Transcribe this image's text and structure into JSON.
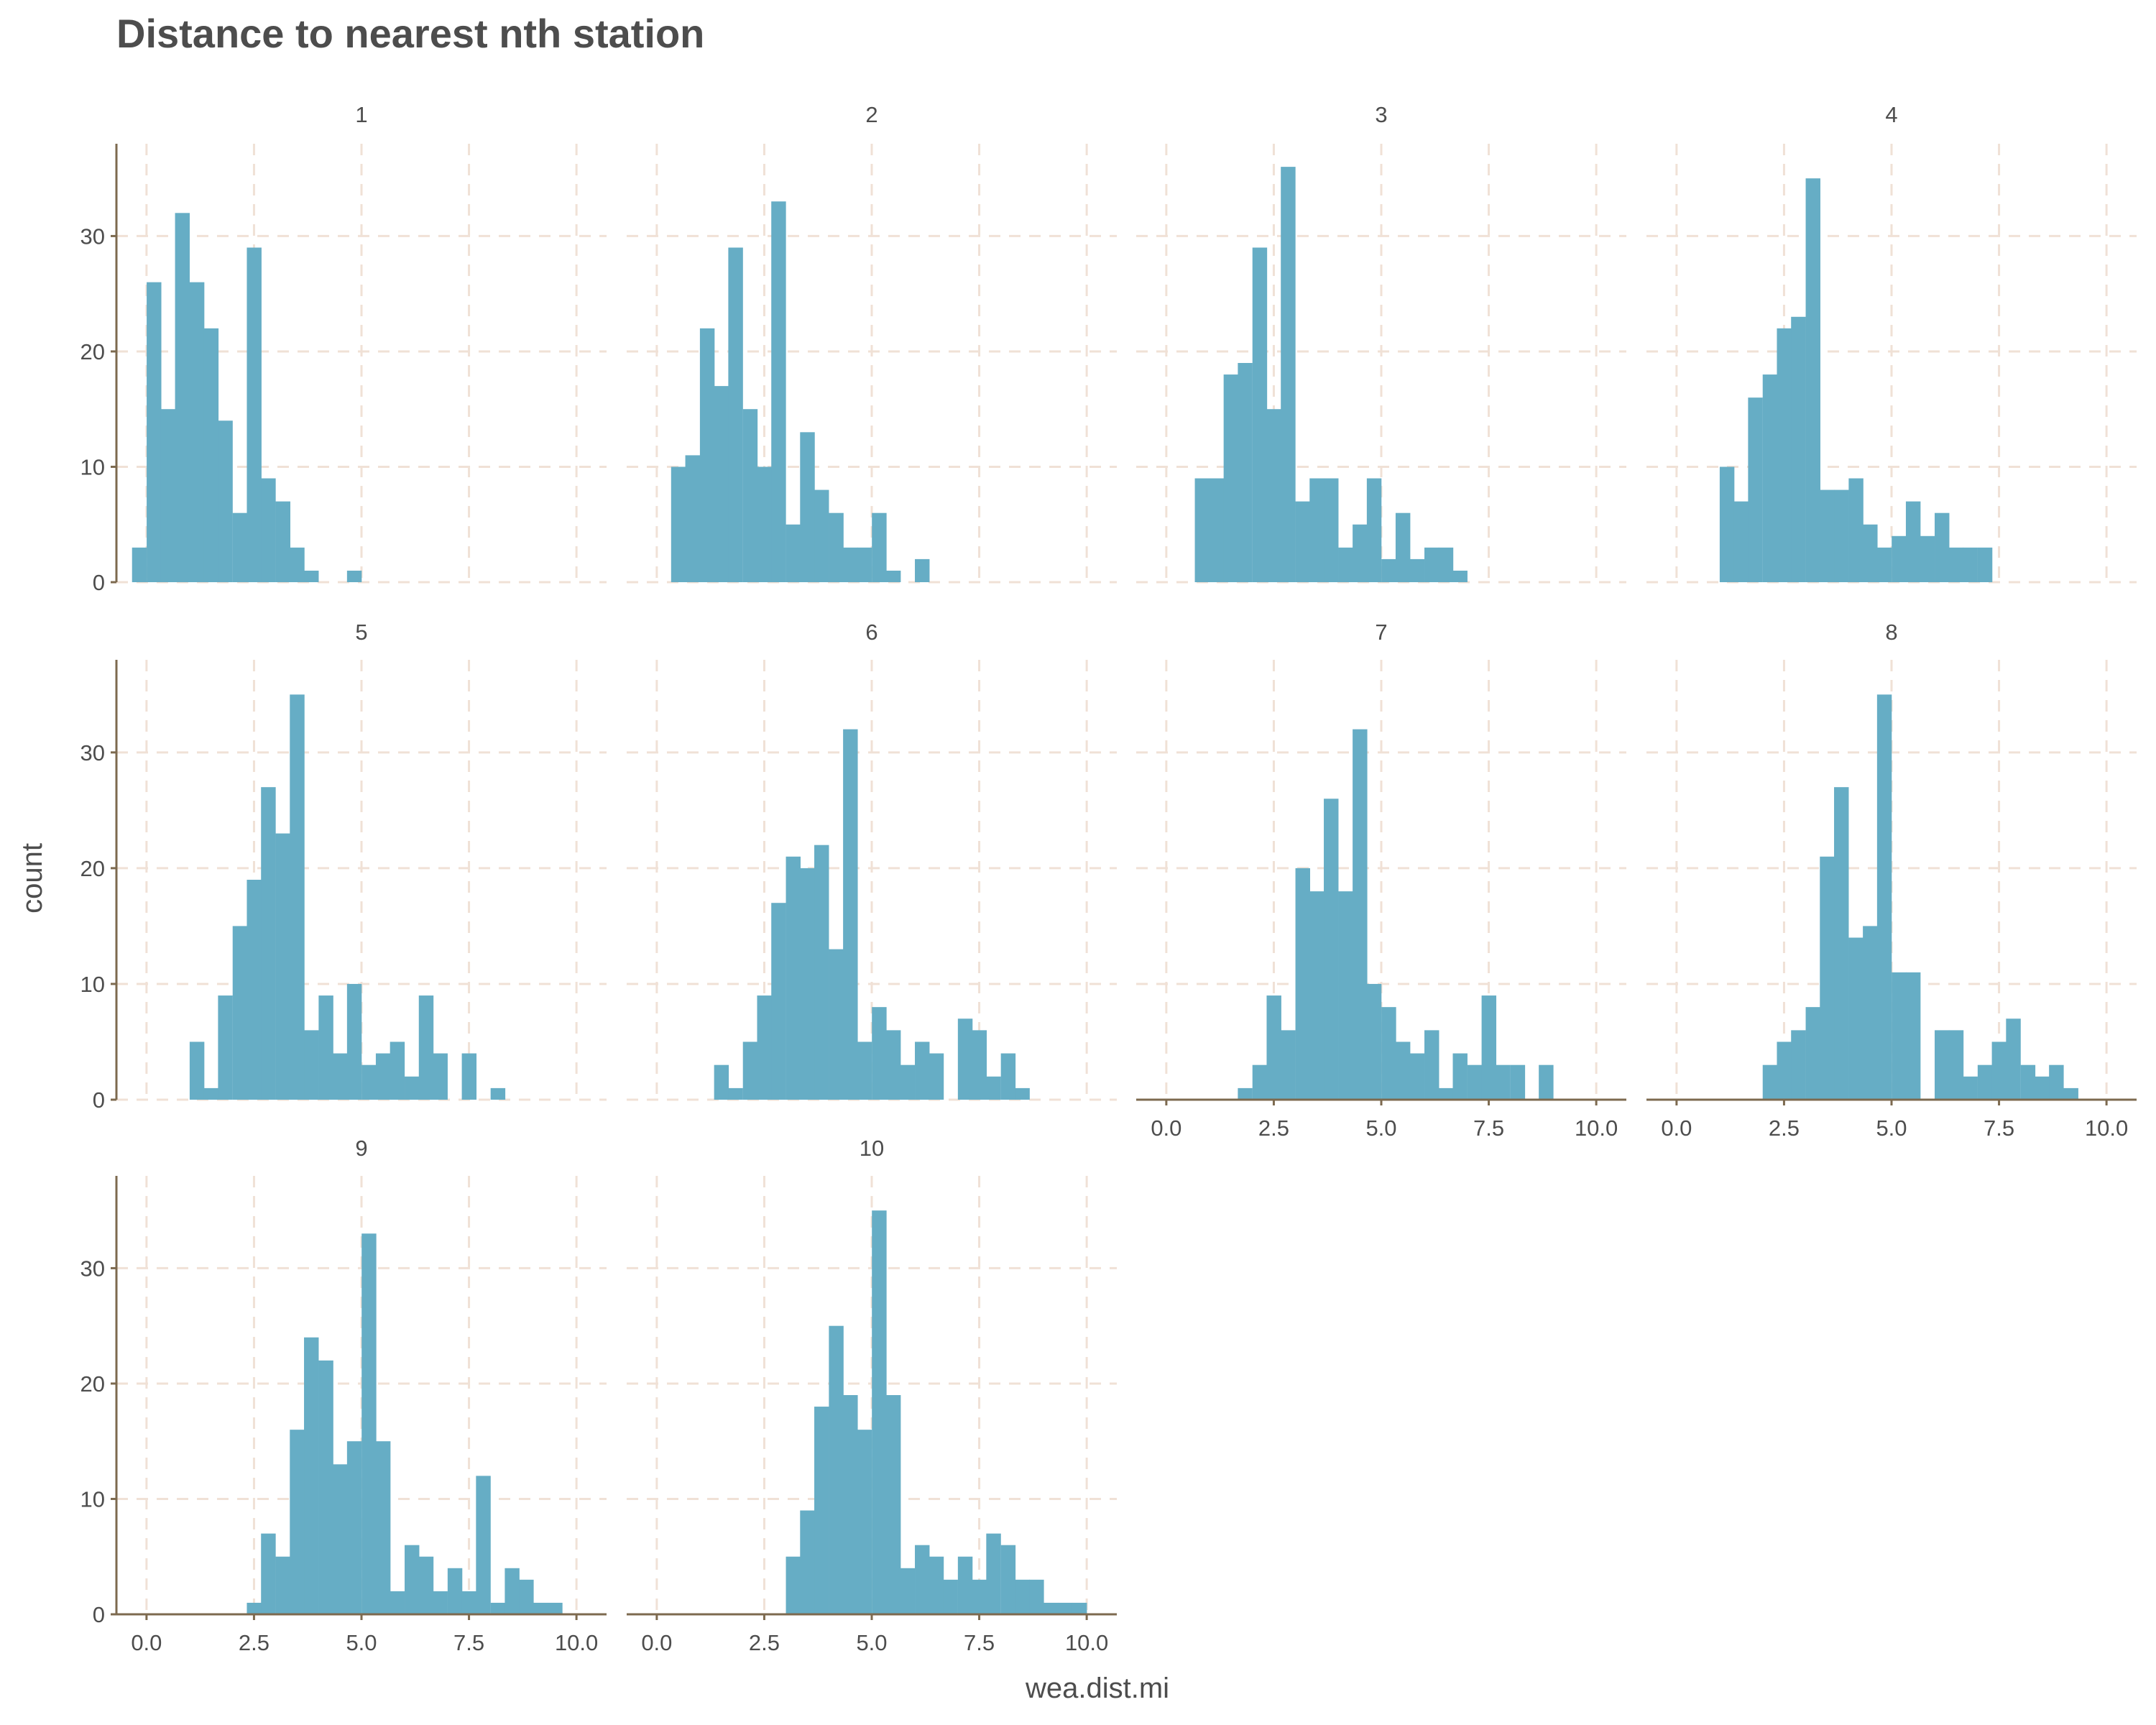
{
  "chart_data": {
    "type": "bar",
    "subtype": "faceted-histogram",
    "title": "Distance to nearest nth station",
    "xlabel": "wea.dist.mi",
    "ylabel": "count",
    "xlim": [
      -0.7,
      10.7
    ],
    "ylim": [
      0,
      38
    ],
    "x_ticks": [
      0.0,
      2.5,
      5.0,
      7.5,
      10.0
    ],
    "x_tick_labels": [
      "0.0",
      "2.5",
      "5.0",
      "7.5",
      "10.0"
    ],
    "y_ticks": [
      0,
      10,
      20,
      30
    ],
    "y_tick_labels": [
      "0",
      "10",
      "20",
      "30"
    ],
    "grid": true,
    "legend": "none",
    "colors": {
      "bar": "#66adc5",
      "grid": "#f0e1d6",
      "axis": "#7d6a4f",
      "text": "#4d4d4d"
    },
    "bin_width": 0.3333,
    "facets": [
      {
        "label": "1",
        "bins": [
          [
            -0.17,
            3
          ],
          [
            0.17,
            26
          ],
          [
            0.5,
            15
          ],
          [
            0.83,
            32
          ],
          [
            1.17,
            26
          ],
          [
            1.5,
            22
          ],
          [
            1.83,
            14
          ],
          [
            2.17,
            6
          ],
          [
            2.5,
            29
          ],
          [
            2.83,
            9
          ],
          [
            3.17,
            7
          ],
          [
            3.5,
            3
          ],
          [
            3.83,
            1
          ],
          [
            4.83,
            1
          ]
        ]
      },
      {
        "label": "2",
        "bins": [
          [
            0.5,
            10
          ],
          [
            0.83,
            11
          ],
          [
            1.17,
            22
          ],
          [
            1.5,
            17
          ],
          [
            1.83,
            29
          ],
          [
            2.17,
            15
          ],
          [
            2.5,
            10
          ],
          [
            2.83,
            33
          ],
          [
            3.17,
            5
          ],
          [
            3.5,
            13
          ],
          [
            3.83,
            8
          ],
          [
            4.17,
            6
          ],
          [
            4.5,
            3
          ],
          [
            4.83,
            3
          ],
          [
            5.17,
            6
          ],
          [
            5.5,
            1
          ],
          [
            6.17,
            2
          ]
        ]
      },
      {
        "label": "3",
        "bins": [
          [
            0.83,
            9
          ],
          [
            1.17,
            9
          ],
          [
            1.5,
            18
          ],
          [
            1.83,
            19
          ],
          [
            2.17,
            29
          ],
          [
            2.5,
            15
          ],
          [
            2.83,
            36
          ],
          [
            3.17,
            7
          ],
          [
            3.5,
            9
          ],
          [
            3.83,
            9
          ],
          [
            4.17,
            3
          ],
          [
            4.5,
            5
          ],
          [
            4.83,
            9
          ],
          [
            5.17,
            2
          ],
          [
            5.5,
            6
          ],
          [
            5.83,
            2
          ],
          [
            6.17,
            3
          ],
          [
            6.5,
            3
          ],
          [
            6.83,
            1
          ]
        ]
      },
      {
        "label": "4",
        "bins": [
          [
            1.17,
            10
          ],
          [
            1.5,
            7
          ],
          [
            1.83,
            16
          ],
          [
            2.17,
            18
          ],
          [
            2.5,
            22
          ],
          [
            2.83,
            23
          ],
          [
            3.17,
            35
          ],
          [
            3.5,
            8
          ],
          [
            3.83,
            8
          ],
          [
            4.17,
            9
          ],
          [
            4.5,
            5
          ],
          [
            4.83,
            3
          ],
          [
            5.17,
            4
          ],
          [
            5.5,
            7
          ],
          [
            5.83,
            4
          ],
          [
            6.17,
            6
          ],
          [
            6.5,
            3
          ],
          [
            6.83,
            3
          ],
          [
            7.17,
            3
          ]
        ]
      },
      {
        "label": "5",
        "bins": [
          [
            1.17,
            5
          ],
          [
            1.5,
            1
          ],
          [
            1.83,
            9
          ],
          [
            2.17,
            15
          ],
          [
            2.5,
            19
          ],
          [
            2.83,
            27
          ],
          [
            3.17,
            23
          ],
          [
            3.5,
            35
          ],
          [
            3.83,
            6
          ],
          [
            4.17,
            9
          ],
          [
            4.5,
            4
          ],
          [
            4.83,
            10
          ],
          [
            5.17,
            3
          ],
          [
            5.5,
            4
          ],
          [
            5.83,
            5
          ],
          [
            6.17,
            2
          ],
          [
            6.5,
            9
          ],
          [
            6.83,
            4
          ],
          [
            7.5,
            4
          ],
          [
            8.17,
            1
          ]
        ]
      },
      {
        "label": "6",
        "bins": [
          [
            1.5,
            3
          ],
          [
            1.83,
            1
          ],
          [
            2.17,
            5
          ],
          [
            2.5,
            9
          ],
          [
            2.83,
            17
          ],
          [
            3.17,
            21
          ],
          [
            3.5,
            20
          ],
          [
            3.83,
            22
          ],
          [
            4.17,
            13
          ],
          [
            4.5,
            32
          ],
          [
            4.83,
            5
          ],
          [
            5.17,
            8
          ],
          [
            5.5,
            6
          ],
          [
            5.83,
            3
          ],
          [
            6.17,
            5
          ],
          [
            6.5,
            4
          ],
          [
            7.17,
            7
          ],
          [
            7.5,
            6
          ],
          [
            7.83,
            2
          ],
          [
            8.17,
            4
          ],
          [
            8.5,
            1
          ]
        ]
      },
      {
        "label": "7",
        "bins": [
          [
            1.83,
            1
          ],
          [
            2.17,
            3
          ],
          [
            2.5,
            9
          ],
          [
            2.83,
            6
          ],
          [
            3.17,
            20
          ],
          [
            3.5,
            18
          ],
          [
            3.83,
            26
          ],
          [
            4.17,
            18
          ],
          [
            4.5,
            32
          ],
          [
            4.83,
            10
          ],
          [
            5.17,
            8
          ],
          [
            5.5,
            5
          ],
          [
            5.83,
            4
          ],
          [
            6.17,
            6
          ],
          [
            6.5,
            1
          ],
          [
            6.83,
            4
          ],
          [
            7.17,
            3
          ],
          [
            7.5,
            9
          ],
          [
            7.83,
            3
          ],
          [
            8.17,
            3
          ],
          [
            8.83,
            3
          ]
        ]
      },
      {
        "label": "8",
        "bins": [
          [
            2.17,
            3
          ],
          [
            2.5,
            5
          ],
          [
            2.83,
            6
          ],
          [
            3.17,
            8
          ],
          [
            3.5,
            21
          ],
          [
            3.83,
            27
          ],
          [
            4.17,
            14
          ],
          [
            4.5,
            15
          ],
          [
            4.83,
            35
          ],
          [
            5.17,
            11
          ],
          [
            5.5,
            11
          ],
          [
            6.17,
            6
          ],
          [
            6.5,
            6
          ],
          [
            6.83,
            2
          ],
          [
            7.17,
            3
          ],
          [
            7.5,
            5
          ],
          [
            7.83,
            7
          ],
          [
            8.17,
            3
          ],
          [
            8.5,
            2
          ],
          [
            8.83,
            3
          ],
          [
            9.17,
            1
          ]
        ]
      },
      {
        "label": "9",
        "bins": [
          [
            2.5,
            1
          ],
          [
            2.83,
            7
          ],
          [
            3.17,
            5
          ],
          [
            3.5,
            16
          ],
          [
            3.83,
            24
          ],
          [
            4.17,
            22
          ],
          [
            4.5,
            13
          ],
          [
            4.83,
            15
          ],
          [
            5.17,
            33
          ],
          [
            5.5,
            15
          ],
          [
            5.83,
            2
          ],
          [
            6.17,
            6
          ],
          [
            6.5,
            5
          ],
          [
            6.83,
            2
          ],
          [
            7.17,
            4
          ],
          [
            7.5,
            2
          ],
          [
            7.83,
            12
          ],
          [
            8.17,
            1
          ],
          [
            8.5,
            4
          ],
          [
            8.83,
            3
          ],
          [
            9.17,
            1
          ],
          [
            9.5,
            1
          ]
        ]
      },
      {
        "label": "10",
        "bins": [
          [
            3.17,
            5
          ],
          [
            3.5,
            9
          ],
          [
            3.83,
            18
          ],
          [
            4.17,
            25
          ],
          [
            4.5,
            19
          ],
          [
            4.83,
            16
          ],
          [
            5.17,
            35
          ],
          [
            5.5,
            19
          ],
          [
            5.83,
            4
          ],
          [
            6.17,
            6
          ],
          [
            6.5,
            5
          ],
          [
            6.83,
            3
          ],
          [
            7.17,
            5
          ],
          [
            7.5,
            3
          ],
          [
            7.83,
            7
          ],
          [
            8.17,
            6
          ],
          [
            8.5,
            3
          ],
          [
            8.83,
            3
          ],
          [
            9.17,
            1
          ],
          [
            9.5,
            1
          ],
          [
            9.83,
            1
          ]
        ]
      }
    ]
  }
}
